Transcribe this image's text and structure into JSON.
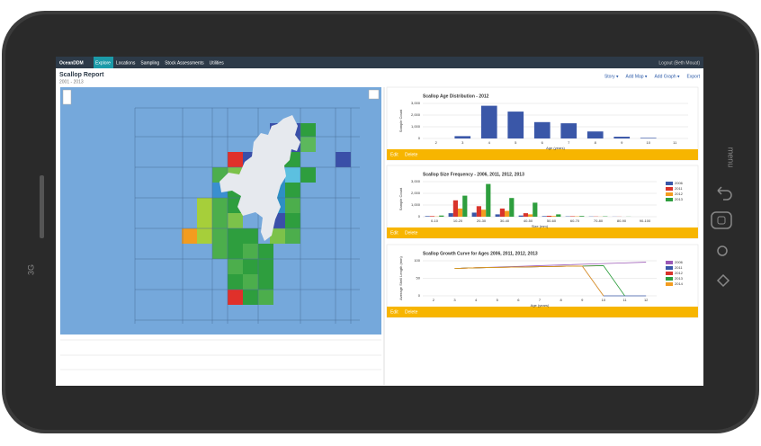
{
  "nav": {
    "brand": "OceanDDM",
    "items": [
      "Explore",
      "Locations",
      "Sampling",
      "Stock Assessments",
      "Utilities"
    ],
    "user": "Logout (Beth Mouat)"
  },
  "report": {
    "title": "Scallop Report",
    "subtitle": "2001 - 2013",
    "actions": [
      "Story ▾",
      "Add Map ▾",
      "Add Graph ▾",
      "Export"
    ]
  },
  "panel_actions": [
    "Edit",
    "Delete"
  ],
  "device": {
    "menu": "menu",
    "network": "3G"
  },
  "charts": [
    {
      "type": "bar",
      "title": "Scallop Age Distribution - 2012",
      "x_label": "Age (years)",
      "y_label": "Sample Count",
      "color": "#3a57a8",
      "categories": [
        "2",
        "3",
        "4",
        "5",
        "6",
        "7",
        "8",
        "9",
        "10",
        "11"
      ],
      "values": [
        0,
        200,
        2800,
        2300,
        1400,
        1300,
        600,
        150,
        50,
        0
      ],
      "ylim": [
        0,
        3000
      ],
      "yticks": [
        0,
        {
          "value": 1000,
          "label": "1,000"
        },
        {
          "value": 2000,
          "label": "2,000"
        },
        {
          "value": 3000,
          "label": "3,000"
        }
      ],
      "grid": true
    },
    {
      "type": "grouped-bar",
      "title": "Scallop Size Frequency - 2006, 2011, 2012, 2013",
      "x_label": "Size (mm)",
      "y_label": "Sample Count",
      "categories": [
        "0-10",
        "10-20",
        "20-30",
        "30-40",
        "40-50",
        "50-60",
        "60-70",
        "70-80",
        "80-90",
        "90-100"
      ],
      "series": [
        {
          "name": "2006",
          "color": "#3a57a8",
          "values": [
            50,
            300,
            350,
            200,
            100,
            50,
            30,
            20,
            10,
            0
          ]
        },
        {
          "name": "2011",
          "color": "#d9342b",
          "values": [
            50,
            1400,
            900,
            700,
            300,
            80,
            40,
            20,
            10,
            0
          ]
        },
        {
          "name": "2012",
          "color": "#f39c1f",
          "values": [
            20,
            700,
            600,
            500,
            200,
            60,
            30,
            10,
            0,
            0
          ]
        },
        {
          "name": "2013",
          "color": "#2e9e3e",
          "values": [
            100,
            1800,
            2800,
            1600,
            1200,
            200,
            60,
            30,
            10,
            0
          ]
        }
      ],
      "ylim": [
        0,
        3000
      ],
      "yticks": [
        0,
        {
          "value": 1000,
          "label": "1,000"
        },
        {
          "value": 2000,
          "label": "2,000"
        },
        {
          "value": 3000,
          "label": "3,000"
        }
      ],
      "grid": true,
      "legend": "right"
    },
    {
      "type": "line",
      "title": "Scallop Growth Curve for Ages 2006, 2011, 2012, 2013",
      "x_label": "Age (years)",
      "y_label": "Average Shell Length (mm)",
      "categories": [
        "2",
        "3",
        "4",
        "5",
        "6",
        "7",
        "8",
        "9",
        "10",
        "11",
        "12"
      ],
      "series": [
        {
          "name": "2006",
          "color": "#9b59b6",
          "values": [
            null,
            78,
            80,
            82,
            84,
            86,
            88,
            90,
            92,
            94,
            96
          ]
        },
        {
          "name": "2011",
          "color": "#3a57a8",
          "values": [
            null,
            78,
            80,
            81,
            82,
            83,
            84,
            85,
            0,
            0,
            0
          ]
        },
        {
          "name": "2012",
          "color": "#d9342b",
          "values": [
            null,
            78,
            80,
            81,
            82,
            83,
            84,
            85,
            86,
            null,
            null
          ]
        },
        {
          "name": "2013",
          "color": "#2e9e3e",
          "values": [
            null,
            78,
            80,
            81,
            82,
            83,
            84,
            85,
            86,
            0,
            null
          ]
        },
        {
          "name": "2014",
          "color": "#f39c1f",
          "values": [
            null,
            78,
            80,
            81,
            82,
            83,
            84,
            85,
            0,
            null,
            null
          ]
        }
      ],
      "ylim": [
        0,
        100
      ],
      "yticks": [
        0,
        50,
        100
      ],
      "grid": true,
      "legend": "right"
    }
  ]
}
